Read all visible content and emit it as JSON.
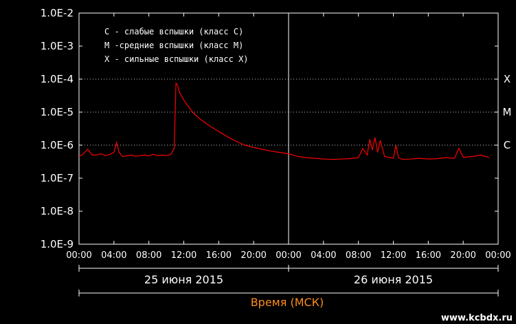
{
  "chart_data": {
    "type": "line",
    "y_scale": "log",
    "ylim": [
      1e-09,
      0.01
    ],
    "yticks": [
      "1.0E-2",
      "1.0E-3",
      "1.0E-4",
      "1.0E-5",
      "1.0E-6",
      "1.0E-7",
      "1.0E-8",
      "1.0E-9"
    ],
    "xlim_hours": [
      0,
      48
    ],
    "xticks": [
      "00:00",
      "04:00",
      "08:00",
      "12:00",
      "16:00",
      "20:00",
      "00:00",
      "04:00",
      "08:00",
      "12:00",
      "16:00",
      "20:00",
      "00:00"
    ],
    "date_labels": [
      "25 июня 2015",
      "26 июня 2015"
    ],
    "xlabel": "Время (МСК)",
    "legend": [
      "C - слабые вспышки (класс C)",
      "M -средние вспышки (класс M)",
      "X - сильные вспышки (класс X)"
    ],
    "flare_classes": [
      {
        "label": "X",
        "value": 0.0001
      },
      {
        "label": "M",
        "value": 1e-05
      },
      {
        "label": "C",
        "value": 1e-06
      }
    ],
    "line_color": "#ff0000",
    "series": [
      {
        "x": [
          0,
          0.5,
          1,
          1.5,
          2,
          2.5,
          3,
          3.5,
          4,
          4.3,
          4.6,
          5,
          5.5,
          6,
          6.5,
          7,
          7.5,
          8,
          8.5,
          9,
          9.5,
          10,
          10.5,
          10.9,
          11.1,
          11.3,
          11.5,
          12,
          12.5,
          13,
          13.5,
          14,
          15,
          16,
          17,
          18,
          19,
          20,
          21,
          22,
          23,
          24,
          25,
          26,
          27,
          28,
          29,
          30,
          31,
          32,
          32.5,
          33,
          33.3,
          33.6,
          33.9,
          34.2,
          34.5,
          35,
          36,
          36.3,
          36.6,
          37,
          38,
          39,
          40,
          41,
          42,
          43,
          43.5,
          44,
          45,
          46,
          47
        ],
        "y": [
          4.5e-07,
          5.5e-07,
          7.5e-07,
          5e-07,
          5e-07,
          5.5e-07,
          4.8e-07,
          5.2e-07,
          6e-07,
          1.2e-06,
          6e-07,
          4.5e-07,
          4.8e-07,
          5e-07,
          4.6e-07,
          4.8e-07,
          5e-07,
          4.7e-07,
          5.3e-07,
          4.8e-07,
          5e-07,
          4.8e-07,
          5.2e-07,
          8e-07,
          7.5e-05,
          6.5e-05,
          4e-05,
          2.3e-05,
          1.5e-05,
          1e-05,
          7.5e-06,
          5.8e-06,
          3.8e-06,
          2.6e-06,
          1.8e-06,
          1.3e-06,
          1e-06,
          8.5e-07,
          7.5e-07,
          6.6e-07,
          6e-07,
          5.5e-07,
          4.6e-07,
          4.2e-07,
          4e-07,
          3.8e-07,
          3.7e-07,
          3.8e-07,
          3.9e-07,
          4.2e-07,
          8e-07,
          5e-07,
          1.5e-06,
          7e-07,
          1.7e-06,
          6e-07,
          1.4e-06,
          4.5e-07,
          4e-07,
          1e-06,
          4.2e-07,
          3.7e-07,
          3.8e-07,
          4e-07,
          3.8e-07,
          3.9e-07,
          4.2e-07,
          4e-07,
          8e-07,
          4.3e-07,
          4.5e-07,
          5e-07,
          4.2e-07
        ]
      }
    ]
  },
  "watermark": "www.kcbdx.ru"
}
